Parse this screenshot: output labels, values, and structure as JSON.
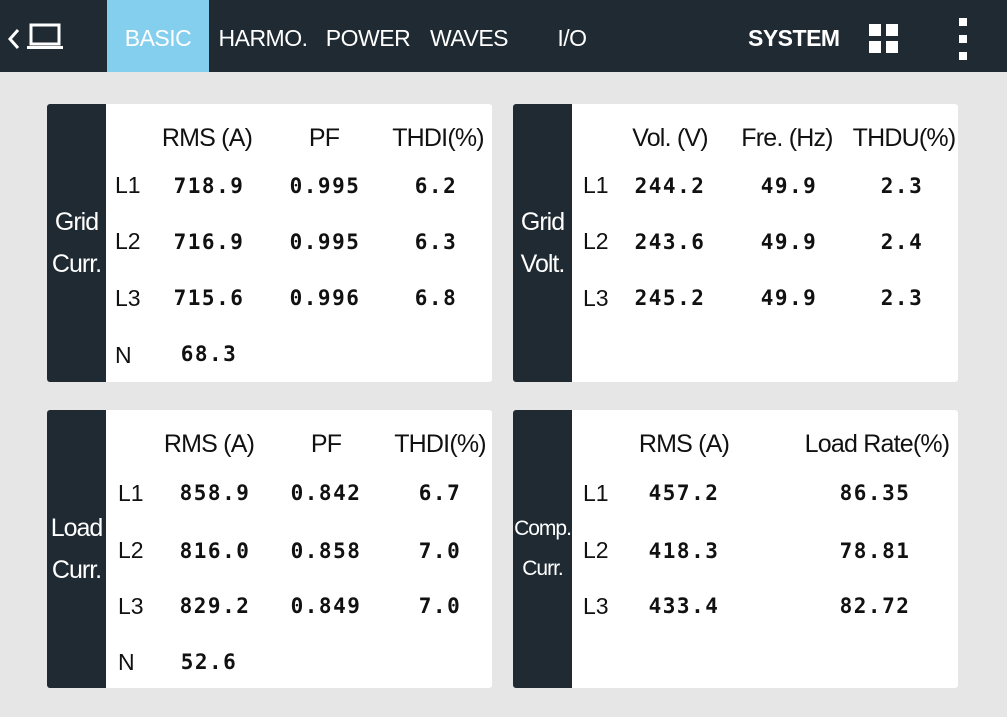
{
  "nav": {
    "tabs": [
      {
        "label": "BASIC",
        "active": true
      },
      {
        "label": "HARMO."
      },
      {
        "label": "POWER"
      },
      {
        "label": "WAVES"
      },
      {
        "label": "I/O"
      }
    ],
    "system_label": "SYSTEM",
    "icons": [
      "chevron-left-icon",
      "laptop-icon",
      "grid-icon",
      "more-vertical-icon"
    ],
    "colors": {
      "bar": "#1f2a33",
      "active_tab": "#85cfee"
    }
  },
  "panels": {
    "grid_curr": {
      "side": [
        "Grid",
        "Curr."
      ],
      "headers": [
        "RMS (A)",
        "PF",
        "THDI(%)"
      ],
      "rows": [
        {
          "label": "L1",
          "values": [
            "718.9",
            "0.995",
            "6.2"
          ]
        },
        {
          "label": "L2",
          "values": [
            "716.9",
            "0.995",
            "6.3"
          ]
        },
        {
          "label": "L3",
          "values": [
            "715.6",
            "0.996",
            "6.8"
          ]
        },
        {
          "label": "N",
          "values": [
            "68.3"
          ]
        }
      ]
    },
    "grid_volt": {
      "side": [
        "Grid",
        "Volt."
      ],
      "headers": [
        "Vol. (V)",
        "Fre. (Hz)",
        "THDU(%)"
      ],
      "rows": [
        {
          "label": "L1",
          "values": [
            "244.2",
            "49.9",
            "2.3"
          ]
        },
        {
          "label": "L2",
          "values": [
            "243.6",
            "49.9",
            "2.4"
          ]
        },
        {
          "label": "L3",
          "values": [
            "245.2",
            "49.9",
            "2.3"
          ]
        }
      ]
    },
    "load_curr": {
      "side": [
        "Load",
        "Curr."
      ],
      "headers": [
        "RMS (A)",
        "PF",
        "THDI(%)"
      ],
      "rows": [
        {
          "label": "L1",
          "values": [
            "858.9",
            "0.842",
            "6.7"
          ]
        },
        {
          "label": "L2",
          "values": [
            "816.0",
            "0.858",
            "7.0"
          ]
        },
        {
          "label": "L3",
          "values": [
            "829.2",
            "0.849",
            "7.0"
          ]
        },
        {
          "label": "N",
          "values": [
            "52.6"
          ]
        }
      ]
    },
    "comp_curr": {
      "side": [
        "Comp.",
        "Curr."
      ],
      "headers": [
        "RMS (A)",
        "Load Rate(%)"
      ],
      "rows": [
        {
          "label": "L1",
          "values": [
            "457.2",
            "86.35"
          ]
        },
        {
          "label": "L2",
          "values": [
            "418.3",
            "78.81"
          ]
        },
        {
          "label": "L3",
          "values": [
            "433.4",
            "82.72"
          ]
        }
      ]
    }
  }
}
